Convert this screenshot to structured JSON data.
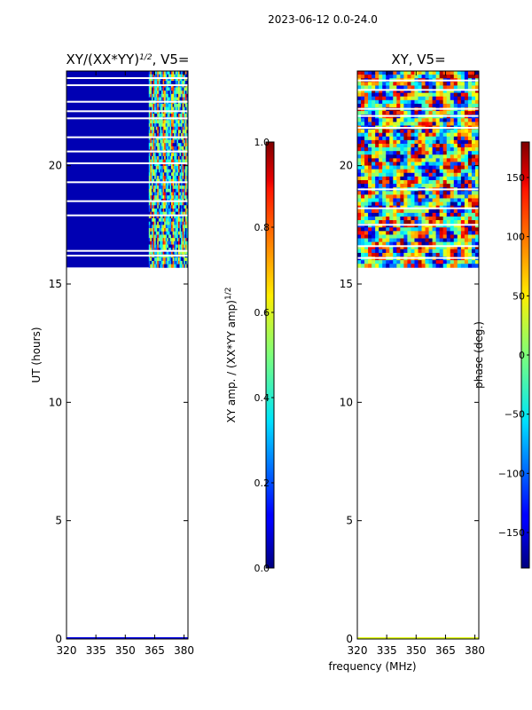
{
  "suptitle": "2023-06-12 0.0-24.0",
  "colors": {
    "mask": "#ffffff",
    "axis": "#000000",
    "background": "#ffffff"
  },
  "chart_data": [
    {
      "type": "heatmap",
      "name": "amplitude-ratio",
      "title_prefix": "XY/(XX*YY)",
      "title_exp": "1/2",
      "title_suffix": ", V5=",
      "xlabel": "",
      "ylabel": "UT (hours)",
      "xlim": [
        320,
        382
      ],
      "ylim": [
        0,
        24
      ],
      "xticks": [
        320,
        335,
        350,
        365,
        380
      ],
      "yticks": [
        0,
        5,
        10,
        15,
        20
      ],
      "data_coverage_hours": [
        15.7,
        24.0
      ],
      "bright_band_mhz": [
        362,
        382
      ],
      "typical_value_low_band": 0.05,
      "typical_value_bright_band": 0.5,
      "masked_rows_hours": [
        16.2,
        16.4,
        17.9,
        18.5,
        19.3,
        20.1,
        20.6,
        21.2,
        22.0,
        22.3,
        22.7,
        23.4,
        23.7
      ],
      "colorbar": {
        "label": "XY amp. / (XX*YY amp)",
        "label_exp": "1/2",
        "range": [
          0.0,
          1.0
        ],
        "ticks": [
          "0.0",
          "0.2",
          "0.4",
          "0.6",
          "0.8",
          "1.0"
        ],
        "colormap": "jet"
      }
    },
    {
      "type": "heatmap",
      "name": "phase",
      "title": "XY, V5=",
      "xlabel": "frequency (MHz)",
      "ylabel": "",
      "xlim": [
        320,
        382
      ],
      "ylim": [
        0,
        24
      ],
      "xticks": [
        320,
        335,
        350,
        365,
        380
      ],
      "yticks": [
        0,
        5,
        10,
        15,
        20
      ],
      "data_coverage_hours": [
        15.7,
        24.0
      ],
      "value_range_deg": [
        -180,
        180
      ],
      "masked_rows_hours": [
        16.1,
        16.6,
        17.5,
        18.2,
        19.0,
        21.6,
        22.1,
        22.4,
        23.2,
        23.6
      ],
      "colorbar": {
        "label": "phase (deg.)",
        "range": [
          -180,
          180
        ],
        "ticks": [
          "−150",
          "−100",
          "−50",
          "0",
          "50",
          "100",
          "150"
        ],
        "tick_values": [
          -150,
          -100,
          -50,
          0,
          50,
          100,
          150
        ],
        "colormap": "jet"
      }
    }
  ]
}
